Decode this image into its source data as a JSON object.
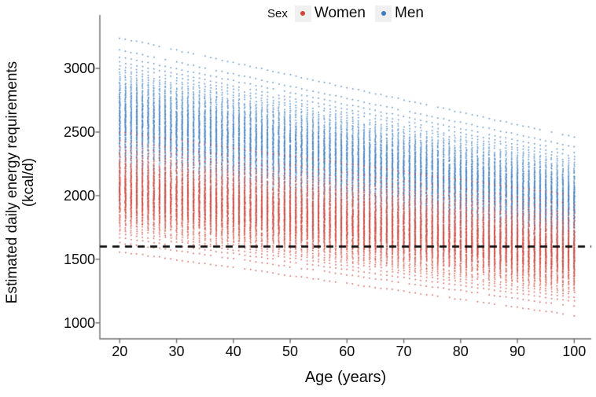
{
  "chart_data": {
    "type": "scatter",
    "title": "",
    "xlabel": "Age (years)",
    "ylabel": "Estimated daily energy requirements (kcal/d)",
    "ylabel_line1": "Estimated daily energy requirements",
    "ylabel_line2": "(kcal/d)",
    "legend": {
      "title": "Sex",
      "position": "top-center",
      "key_background": "#f0f0f0",
      "entries": [
        {
          "label": "Women",
          "color": "#d0443a"
        },
        {
          "label": "Men",
          "color": "#3e7cbe"
        }
      ]
    },
    "x_ticks": [
      20,
      30,
      40,
      50,
      60,
      70,
      80,
      90,
      100
    ],
    "y_ticks": [
      1000,
      1500,
      2000,
      2500,
      3000
    ],
    "xlim": [
      16.5,
      103
    ],
    "ylim": [
      875,
      3420
    ],
    "grid": false,
    "axis_color": "#6e6e6e",
    "text_color": "#0d0d0d",
    "reference_line": {
      "value": 1600,
      "style": "dashed",
      "color": "#0d0d0d",
      "dash": [
        9,
        7
      ],
      "width": 2.6
    },
    "ages": {
      "start": 20,
      "end": 100,
      "step": 1
    },
    "points_per_age_per_sex": 120,
    "series": [
      {
        "name": "Men",
        "color": "#3e7cbe",
        "y_range_at_age_20": [
          1950,
          3240
        ],
        "y_range_at_age_100": [
          1430,
          2460
        ]
      },
      {
        "name": "Women",
        "color": "#d0443a",
        "y_range_at_age_20": [
          1560,
          2500
        ],
        "y_range_at_age_100": [
          1060,
          2000
        ]
      }
    ]
  }
}
